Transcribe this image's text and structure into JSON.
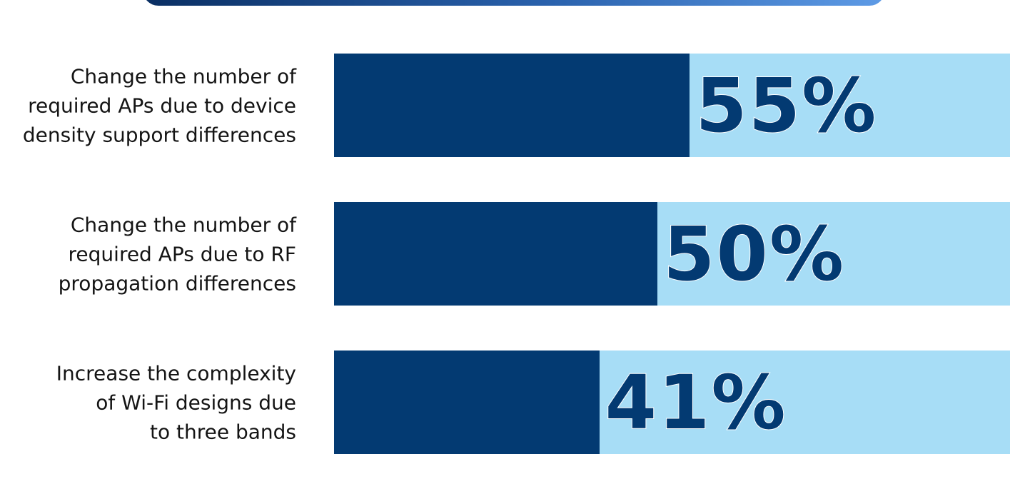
{
  "colors": {
    "bar_fill": "#033a72",
    "bar_track": "#a7ddf6",
    "label_text": "#141414",
    "banner_start": "#0a2f63",
    "banner_end": "#5e9be6"
  },
  "chart_data": {
    "type": "bar",
    "orientation": "horizontal",
    "categories": [
      "Change the number of\nrequired APs due to device\ndensity support differences",
      "Change the number of\nrequired APs due to RF\npropagation differences",
      "Increase the complexity\nof Wi-Fi designs due\nto three bands"
    ],
    "values": [
      55,
      50,
      41
    ],
    "value_labels": [
      "55%",
      "50%",
      "41%"
    ],
    "xlim": [
      0,
      100
    ],
    "grid": false,
    "legend": "none"
  }
}
